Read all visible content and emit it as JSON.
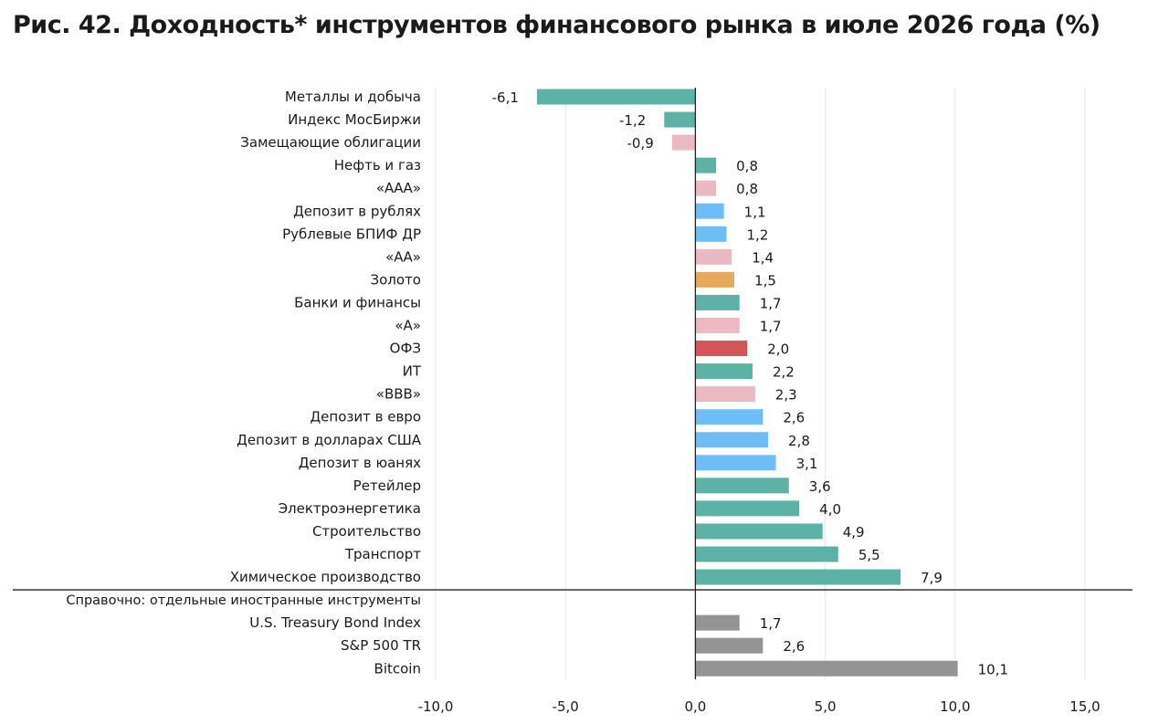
{
  "title": "Рис. 42. Доходность* инструментов финансового рынка в июле 2026 года (%)",
  "colors": {
    "sector": "#5cb3a5",
    "bond": "#ebb9c1",
    "deposit": "#6fbdf6",
    "gold": "#e8a95a",
    "ofz": "#d45559",
    "foreign": "#949494"
  },
  "chart_data": {
    "type": "bar",
    "orientation": "horizontal",
    "title": "Рис. 42. Доходность* инструментов финансового рынка в июле 2026 года (%)",
    "xlim": [
      -10,
      15
    ],
    "x_ticks": [
      "-10,0",
      "-5,0",
      "0,0",
      "5,0",
      "10,0",
      "15,0"
    ],
    "x_tick_values": [
      -10,
      -5,
      0,
      5,
      10,
      15
    ],
    "grid": true,
    "categories": [
      {
        "label": "Металлы и добыча",
        "value": -6.1,
        "value_label": "-6,1",
        "group": "sector"
      },
      {
        "label": "Индекс МосБиржи",
        "value": -1.2,
        "value_label": "-1,2",
        "group": "sector"
      },
      {
        "label": "Замещающие облигации",
        "value": -0.9,
        "value_label": "-0,9",
        "group": "bond"
      },
      {
        "label": "Нефть и газ",
        "value": 0.8,
        "value_label": "0,8",
        "group": "sector"
      },
      {
        "label": "«ААА»",
        "value": 0.8,
        "value_label": "0,8",
        "group": "bond"
      },
      {
        "label": "Депозит в рублях",
        "value": 1.1,
        "value_label": "1,1",
        "group": "deposit"
      },
      {
        "label": "Рублевые БПИФ ДР",
        "value": 1.2,
        "value_label": "1,2",
        "group": "deposit"
      },
      {
        "label": "«АА»",
        "value": 1.4,
        "value_label": "1,4",
        "group": "bond"
      },
      {
        "label": "Золото",
        "value": 1.5,
        "value_label": "1,5",
        "group": "gold"
      },
      {
        "label": "Банки и финансы",
        "value": 1.7,
        "value_label": "1,7",
        "group": "sector"
      },
      {
        "label": "«А»",
        "value": 1.7,
        "value_label": "1,7",
        "group": "bond"
      },
      {
        "label": "ОФЗ",
        "value": 2.0,
        "value_label": "2,0",
        "group": "ofz"
      },
      {
        "label": "ИТ",
        "value": 2.2,
        "value_label": "2,2",
        "group": "sector"
      },
      {
        "label": "«ВВВ»",
        "value": 2.3,
        "value_label": "2,3",
        "group": "bond"
      },
      {
        "label": "Депозит в евро",
        "value": 2.6,
        "value_label": "2,6",
        "group": "deposit"
      },
      {
        "label": "Депозит в долларах США",
        "value": 2.8,
        "value_label": "2,8",
        "group": "deposit"
      },
      {
        "label": "Депозит в юанях",
        "value": 3.1,
        "value_label": "3,1",
        "group": "deposit"
      },
      {
        "label": "Ретейлер",
        "value": 3.6,
        "value_label": "3,6",
        "group": "sector"
      },
      {
        "label": "Электроэнергетика",
        "value": 4.0,
        "value_label": "4,0",
        "group": "sector"
      },
      {
        "label": "Строительство",
        "value": 4.9,
        "value_label": "4,9",
        "group": "sector"
      },
      {
        "label": "Транспорт",
        "value": 5.5,
        "value_label": "5,5",
        "group": "sector"
      },
      {
        "label": "Химическое производство",
        "value": 7.9,
        "value_label": "7,9",
        "group": "sector"
      }
    ],
    "reference_heading": "Справочно: отдельные иностранные инструменты",
    "reference_categories": [
      {
        "label": "U.S. Treasury Bond Index",
        "value": 1.7,
        "value_label": "1,7",
        "group": "foreign"
      },
      {
        "label": "S&P 500 TR",
        "value": 2.6,
        "value_label": "2,6",
        "group": "foreign"
      },
      {
        "label": "Bitcoin",
        "value": 10.1,
        "value_label": "10,1",
        "group": "foreign"
      }
    ]
  }
}
